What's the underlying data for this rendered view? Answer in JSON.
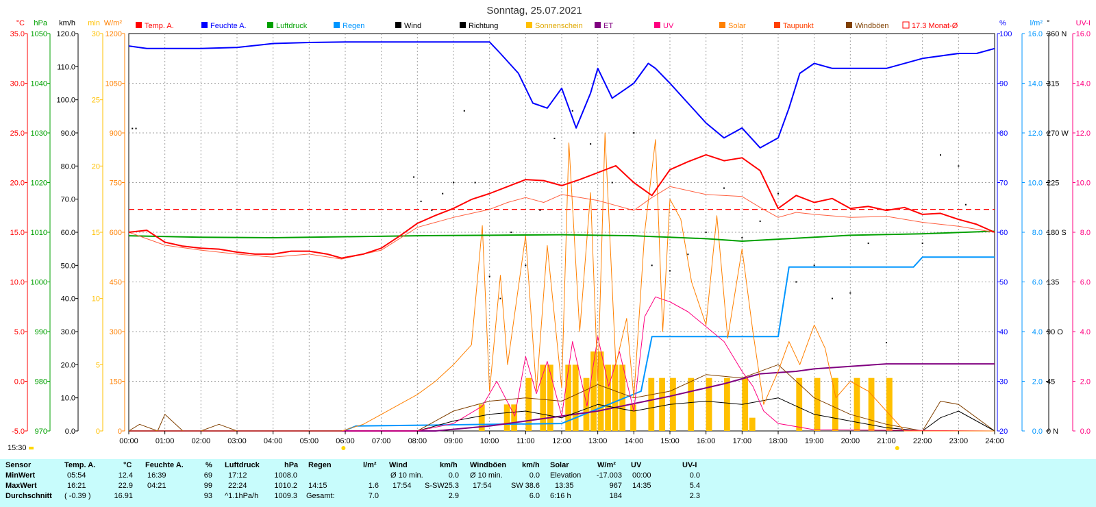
{
  "chart_data": {
    "type": "line",
    "title": "Sonntag, 25.07.2021",
    "x_ticks": [
      "00:00",
      "01:00",
      "02:00",
      "03:00",
      "04:00",
      "05:00",
      "06:00",
      "07:00",
      "08:00",
      "09:00",
      "10:00",
      "11:00",
      "12:00",
      "13:00",
      "14:00",
      "15:00",
      "16:00",
      "17:00",
      "18:00",
      "19:00",
      "20:00",
      "21:00",
      "22:00",
      "23:00",
      "24:00"
    ],
    "xlim": [
      0,
      24
    ],
    "grid": true,
    "legend": [
      {
        "label": "Temp. A.",
        "color": "#ff0000",
        "style": "filled"
      },
      {
        "label": "Feuchte A.",
        "color": "#0000ff",
        "style": "filled"
      },
      {
        "label": "Luftdruck",
        "color": "#00a000",
        "style": "filled"
      },
      {
        "label": "Regen",
        "color": "#0096ff",
        "style": "filled"
      },
      {
        "label": "Wind",
        "color": "#000000",
        "style": "filled"
      },
      {
        "label": "Richtung",
        "color": "#000000",
        "style": "filled"
      },
      {
        "label": "Sonnenschein",
        "color": "#ffc000",
        "style": "filled"
      },
      {
        "label": "ET",
        "color": "#800080",
        "style": "filled"
      },
      {
        "label": "UV",
        "color": "#ff0080",
        "style": "filled"
      },
      {
        "label": "Solar",
        "color": "#ff8000",
        "style": "filled"
      },
      {
        "label": "Taupunkt",
        "color": "#ff4000",
        "style": "filled"
      },
      {
        "label": "Windböen",
        "color": "#804000",
        "style": "filled"
      },
      {
        "label": "17.3 Monat-Ø",
        "color": "#ff0000",
        "style": "outline"
      }
    ],
    "axes": {
      "temp": {
        "unit": "°C",
        "color": "#ff0000",
        "ticks": [
          "35.0",
          "30.0",
          "25.0",
          "20.0",
          "15.0",
          "10.0",
          "5.0",
          "0.0",
          "-5.0"
        ]
      },
      "hpa": {
        "unit": "hPa",
        "color": "#00a000",
        "ticks": [
          "1050",
          "1040",
          "1030",
          "1020",
          "1010",
          "1000",
          "990",
          "980",
          "970"
        ]
      },
      "kmh": {
        "unit": "km/h",
        "color": "#000000",
        "ticks": [
          "120.0",
          "110.0",
          "100.0",
          "90.0",
          "80.0",
          "70.0",
          "60.0",
          "50.0",
          "40.0",
          "30.0",
          "20.0",
          "10.0",
          "0.0"
        ]
      },
      "min": {
        "unit": "min",
        "color": "#ffc000",
        "ticks": [
          "30",
          "25",
          "20",
          "15",
          "10",
          "5",
          "0"
        ]
      },
      "wm2": {
        "unit": "W/m²",
        "color": "#ff8000",
        "ticks": [
          "1200",
          "1050",
          "900",
          "750",
          "600",
          "450",
          "300",
          "150",
          "0"
        ]
      },
      "pct": {
        "unit": "%",
        "color": "#0000ff",
        "ticks": [
          "100",
          "90",
          "80",
          "70",
          "60",
          "50",
          "40",
          "30",
          "20"
        ]
      },
      "lm2": {
        "unit": "l/m²",
        "color": "#0096ff",
        "ticks": [
          "16.0",
          "14.0",
          "12.0",
          "10.0",
          "8.0",
          "6.0",
          "4.0",
          "2.0",
          "0.0"
        ]
      },
      "deg": {
        "unit": "°",
        "color": "#000000",
        "ticks": [
          "360 N",
          "315",
          "270 W",
          "225",
          "180 S",
          "135",
          "90 O",
          "45",
          "0 N"
        ]
      },
      "uvi": {
        "unit": "UV-I",
        "color": "#ff0080",
        "ticks": [
          "16.0",
          "14.0",
          "12.0",
          "10.0",
          "8.0",
          "6.0",
          "4.0",
          "2.0",
          "0.0"
        ]
      }
    },
    "monthly_mean_temp": 17.3,
    "series": [
      {
        "name": "Temp. A.",
        "axis": "temp",
        "color": "#ff0000",
        "x": [
          0,
          0.5,
          1,
          1.5,
          2,
          2.5,
          3,
          3.5,
          4,
          4.5,
          5,
          5.5,
          5.9,
          6.5,
          7,
          7.5,
          8,
          8.5,
          9,
          9.5,
          10,
          10.5,
          11,
          11.5,
          12,
          12.5,
          13,
          13.5,
          14,
          14.5,
          15,
          15.5,
          16,
          16.5,
          17,
          17.5,
          18,
          18.5,
          19,
          19.5,
          20,
          20.5,
          21,
          21.5,
          22,
          22.5,
          23,
          23.5,
          24
        ],
        "values": [
          15.0,
          15.2,
          14.0,
          13.6,
          13.4,
          13.3,
          13.0,
          12.8,
          12.8,
          13.1,
          13.1,
          12.8,
          12.4,
          12.8,
          13.4,
          14.6,
          15.9,
          16.7,
          17.4,
          18.3,
          18.9,
          19.6,
          20.3,
          20.2,
          19.7,
          20.3,
          21.0,
          21.7,
          20.0,
          18.7,
          21.3,
          22.1,
          22.8,
          22.2,
          22.5,
          21.2,
          17.4,
          18.7,
          18.0,
          18.4,
          17.4,
          17.6,
          17.2,
          17.5,
          16.8,
          16.9,
          16.3,
          15.8,
          15.0
        ]
      },
      {
        "name": "Taupunkt",
        "axis": "temp",
        "color": "#ff6040",
        "x": [
          0,
          1,
          2,
          3,
          4,
          5,
          5.9,
          7,
          8,
          9,
          10,
          10.5,
          11,
          11.5,
          12,
          13,
          14,
          14.5,
          15,
          16,
          17,
          17.5,
          18,
          18.5,
          19,
          20,
          21,
          22,
          23,
          24
        ],
        "values": [
          15.0,
          13.7,
          13.2,
          12.8,
          12.5,
          12.8,
          12.3,
          13.2,
          15.5,
          16.5,
          17.3,
          18.0,
          18.5,
          18.0,
          18.8,
          18.2,
          17.2,
          18.5,
          19.6,
          18.8,
          18.6,
          17.5,
          16.5,
          17.0,
          16.8,
          16.5,
          16.6,
          16.0,
          15.6,
          15.0
        ]
      },
      {
        "name": "Feuchte A.",
        "axis": "pct",
        "color": "#0000ff",
        "x": [
          0,
          0.5,
          1,
          2,
          3,
          4,
          5,
          6,
          7,
          8,
          9,
          10,
          10.3,
          10.8,
          11.2,
          11.6,
          12,
          12.4,
          12.8,
          13,
          13.4,
          13.8,
          14,
          14.4,
          14.6,
          15,
          15.5,
          16,
          16.5,
          17,
          17.5,
          18,
          18.3,
          18.6,
          19,
          19.5,
          20,
          21,
          22,
          23,
          23.5,
          24
        ],
        "values": [
          97.5,
          97,
          97,
          97,
          97.2,
          98,
          98.2,
          98.3,
          98.3,
          98.3,
          98.3,
          98.3,
          96,
          92,
          86,
          85,
          89,
          81,
          88,
          93,
          87,
          89,
          90,
          94,
          93,
          90,
          86,
          82,
          79,
          81,
          77,
          79,
          85,
          92,
          94,
          93,
          93,
          93,
          95,
          96,
          96,
          97
        ]
      },
      {
        "name": "Luftdruck",
        "axis": "hpa",
        "color": "#00a000",
        "x": [
          0,
          2,
          4,
          6,
          8,
          10,
          12,
          14,
          16,
          17,
          18,
          20,
          22,
          24
        ],
        "values": [
          1009.3,
          1009.0,
          1008.9,
          1009.1,
          1009.3,
          1009.4,
          1009.5,
          1009.3,
          1008.7,
          1008.2,
          1008.6,
          1009.4,
          1009.7,
          1010.2
        ]
      },
      {
        "name": "Regen",
        "axis": "lm2",
        "color": "#0096ff",
        "x": [
          0,
          5.95,
          6.3,
          12,
          14.2,
          14.5,
          18,
          18.3,
          21.75,
          22,
          24
        ],
        "values": [
          0,
          0,
          0.2,
          0.3,
          1.6,
          3.8,
          3.8,
          6.6,
          6.6,
          7.0,
          7.0
        ]
      },
      {
        "name": "ET",
        "axis": "lm2",
        "color": "#800080",
        "x": [
          0,
          8.5,
          10,
          11.5,
          13,
          14,
          15,
          16.5,
          17.5,
          18.5,
          19,
          20,
          21,
          22,
          24
        ],
        "values": [
          0,
          0,
          0.2,
          0.5,
          0.8,
          1.1,
          1.4,
          1.9,
          2.3,
          2.4,
          2.5,
          2.6,
          2.7,
          2.7,
          2.7
        ]
      },
      {
        "name": "Solar",
        "axis": "wm2",
        "color": "#ff8000",
        "x": [
          0,
          5.9,
          6.5,
          7,
          7.5,
          8,
          8.5,
          9,
          9.5,
          9.8,
          10,
          10.3,
          10.5,
          11,
          11.3,
          11.6,
          12,
          12.2,
          12.5,
          12.8,
          13,
          13.2,
          13.5,
          13.8,
          14,
          14.3,
          14.6,
          14.8,
          15,
          15.3,
          15.6,
          16,
          16.3,
          16.6,
          17,
          17.3,
          17.6,
          18,
          18.3,
          18.6,
          19,
          19.3,
          19.6,
          20,
          20.5,
          21,
          21.5,
          24
        ],
        "values": [
          0,
          0,
          20,
          50,
          80,
          110,
          150,
          200,
          260,
          620,
          120,
          470,
          200,
          590,
          120,
          560,
          130,
          870,
          300,
          720,
          150,
          900,
          200,
          340,
          100,
          600,
          880,
          300,
          700,
          640,
          450,
          320,
          650,
          280,
          550,
          300,
          80,
          180,
          270,
          200,
          320,
          250,
          100,
          150,
          120,
          60,
          0,
          0
        ]
      },
      {
        "name": "UV",
        "axis": "uvi",
        "color": "#ff0080",
        "x": [
          0,
          8,
          9,
          9.8,
          10.2,
          10.7,
          11,
          11.3,
          11.6,
          12,
          12.3,
          12.7,
          13,
          13.3,
          13.6,
          14,
          14.3,
          14.6,
          15,
          15.5,
          16,
          16.5,
          17,
          17.3,
          17.6,
          18,
          19,
          24
        ],
        "values": [
          0,
          0,
          0.3,
          1.0,
          2.0,
          0.6,
          3.0,
          1.5,
          2.8,
          0.6,
          3.6,
          1.0,
          3.8,
          1.8,
          3.2,
          0.8,
          4.6,
          5.4,
          5.2,
          4.8,
          4.2,
          3.6,
          2.4,
          1.8,
          0.8,
          0.3,
          0.05,
          0
        ]
      },
      {
        "name": "Wind",
        "axis": "kmh",
        "color": "#000000",
        "x": [
          0,
          8,
          9,
          10,
          11,
          12,
          13,
          14,
          15,
          16,
          17,
          18,
          19,
          20,
          21,
          22,
          22.5,
          23,
          24
        ],
        "values": [
          0,
          0,
          3,
          5,
          6,
          4,
          8,
          6,
          8,
          9,
          8,
          10,
          5,
          3,
          1,
          0,
          4,
          6,
          0
        ]
      },
      {
        "name": "Windböen",
        "axis": "kmh",
        "color": "#804000",
        "x": [
          0,
          0.3,
          0.8,
          1.0,
          1.5,
          2,
          2.5,
          3,
          8,
          9,
          10,
          11,
          12,
          13,
          14,
          15,
          16,
          17,
          18,
          19,
          20,
          21,
          22,
          22.5,
          23,
          24
        ],
        "values": [
          0,
          2,
          0,
          5,
          0,
          0,
          2,
          0,
          0,
          6,
          9,
          10,
          9,
          14,
          10,
          12,
          17,
          16,
          20,
          10,
          5,
          2,
          0,
          9,
          8,
          0
        ]
      },
      {
        "name": "Richtung",
        "axis": "deg",
        "color": "#000000",
        "type": "scatter",
        "x": [
          0.1,
          0.2,
          7.9,
          8.1,
          8.4,
          8.7,
          9.0,
          9.3,
          9.6,
          10.0,
          10.3,
          10.6,
          11.0,
          11.4,
          11.8,
          12.3,
          12.8,
          13.4,
          14.0,
          14.5,
          15.0,
          15.5,
          16.0,
          16.5,
          17.0,
          17.5,
          18.0,
          18.5,
          19.0,
          19.5,
          20.0,
          20.5,
          21.0,
          22.0,
          22.5,
          23.0,
          23.2
        ],
        "values": [
          274,
          274,
          230,
          208,
          200,
          215,
          225,
          290,
          225,
          140,
          120,
          180,
          150,
          200,
          265,
          290,
          260,
          225,
          270,
          150,
          145,
          160,
          180,
          220,
          175,
          190,
          215,
          135,
          150,
          120,
          125,
          170,
          80,
          170,
          250,
          240,
          205
        ]
      },
      {
        "name": "Sonnenschein",
        "axis": "min",
        "color": "#ffc000",
        "type": "bar",
        "x": [
          9.7,
          10.4,
          10.6,
          11.0,
          11.4,
          11.6,
          12.1,
          12.3,
          12.6,
          12.8,
          13.0,
          13.2,
          13.4,
          13.6,
          13.9,
          14.4,
          14.7,
          15.0,
          15.5,
          16.0,
          16.5,
          17.0,
          17.2,
          18.5,
          19,
          19.5,
          20.1,
          20.5,
          21
        ],
        "values": [
          2,
          2,
          2,
          4,
          5,
          5,
          5,
          5,
          4,
          6,
          6,
          5,
          5,
          5,
          2,
          4,
          4,
          4,
          4,
          4,
          4,
          4,
          1,
          4,
          4,
          4,
          4,
          4,
          4
        ]
      }
    ]
  },
  "timestamp": "15:30",
  "summary": {
    "row_labels": [
      "Sensor",
      "MinWert",
      "MaxWert",
      "Durchschnitt"
    ],
    "temp": {
      "header": "Temp. A.",
      "unit": "°C",
      "min_time": "05:54",
      "min": "12.4",
      "max_time": "16:21",
      "max": "22.9",
      "avg_note": "( -0.39 )",
      "avg": "16.91"
    },
    "hum": {
      "header": "Feuchte A.",
      "unit": "%",
      "min_time": "16:39",
      "min": "69",
      "max_time": "04:21",
      "max": "99",
      "avg": "93"
    },
    "press": {
      "header": "Luftdruck",
      "unit": "hPa",
      "min_time": "17:12",
      "min": "1008.0",
      "max_time": "22:24",
      "max": "1010.2",
      "avg_note": "^1.1hPa/h",
      "avg": "1009.3"
    },
    "rain": {
      "header": "Regen",
      "unit": "l/m²",
      "max_time": "14:15",
      "max": "1.6",
      "total_label": "Gesamt:",
      "total": "7.0"
    },
    "wind": {
      "header": "Wind",
      "unit": "km/h",
      "min_label": "Ø 10 min.",
      "min": "0.0",
      "max_time": "17:54",
      "max_dir": "S-SW",
      "max": "25.3",
      "avg": "2.9"
    },
    "gust": {
      "header": "Windböen",
      "unit": "km/h",
      "min_label": "Ø 10 min.",
      "min": "0.0",
      "max_time": "17:54",
      "max_dir": "SW",
      "max": "38.6",
      "avg": "6.0"
    },
    "solar": {
      "header": "Solar",
      "unit": "W/m²",
      "min_label": "Elevation",
      "min": "-17.003",
      "max_time": "13:35",
      "max": "967",
      "avg_note": "6:16 h",
      "avg": "184"
    },
    "uv": {
      "header": "UV",
      "unit": "UV-I",
      "min_time": "00:00",
      "min": "0.0",
      "max_time": "14:35",
      "max": "5.4",
      "avg": "2.3"
    }
  }
}
